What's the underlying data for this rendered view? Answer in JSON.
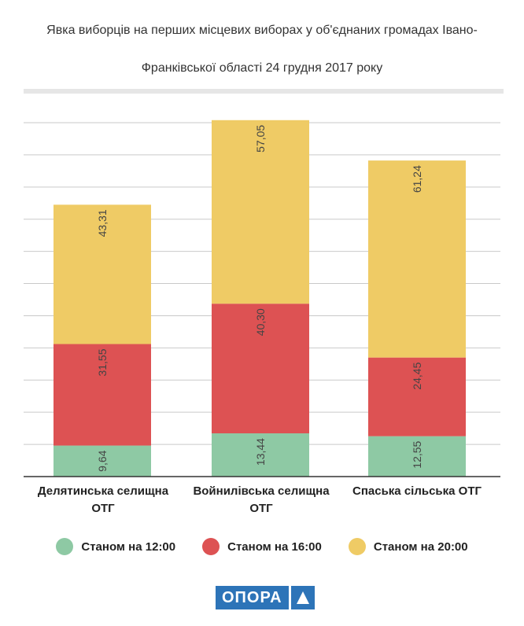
{
  "chart_data": {
    "type": "bar",
    "stacked": true,
    "title_line1": "Явка виборців на перших місцевих виборах у об'єднаних громадах Івано-",
    "title_line2": "Франківської області 24 грудня 2017 року",
    "categories": [
      [
        "Делятинська селищна",
        "ОТГ"
      ],
      [
        "Войнилівська селищна",
        "ОТГ"
      ],
      [
        "Спаська сільська ОТГ"
      ]
    ],
    "series": [
      {
        "name": "Станом на 12:00",
        "color": "#8ec9a4",
        "values": [
          9.64,
          13.44,
          12.55
        ],
        "labels": [
          "9,64",
          "13,44",
          "12,55"
        ]
      },
      {
        "name": "Станом на 16:00",
        "color": "#dd5253",
        "values": [
          31.55,
          40.3,
          24.45
        ],
        "labels": [
          "31,55",
          "40,30",
          "24,45"
        ]
      },
      {
        "name": "Станом на 20:00",
        "color": "#efcb65",
        "values": [
          43.31,
          57.05,
          61.24
        ],
        "labels": [
          "43,31",
          "57,05",
          "61,24"
        ]
      }
    ],
    "ylim": [
      0,
      110
    ],
    "grid_step": 10,
    "grid": true,
    "legend_position": "bottom"
  },
  "logo": {
    "text": "ОПОРА"
  }
}
